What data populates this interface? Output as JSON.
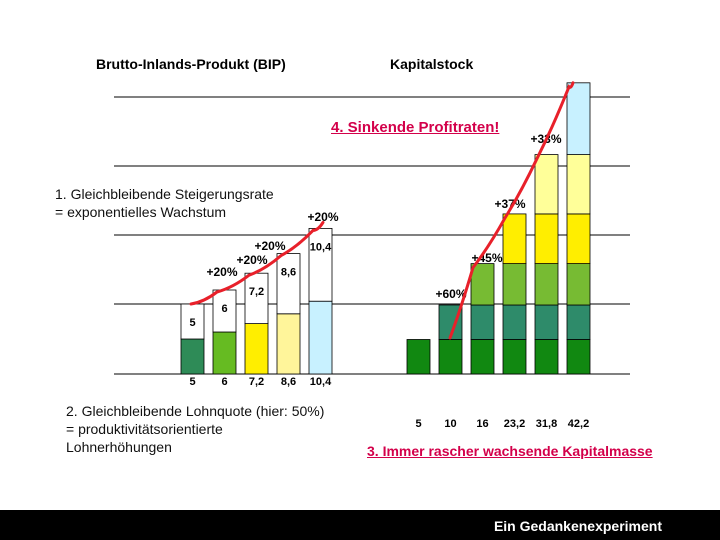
{
  "titles": {
    "left": "Brutto-Inlands-Produkt (BIP)",
    "right": "Kapitalstock"
  },
  "notes": {
    "note1_line1": "1. Gleichbleibende Steigerungsrate",
    "note1_line2": "= exponentielles Wachstum",
    "note2_line1": "2. Gleichbleibende Lohnquote (hier: 50%)",
    "note2_line2": "= produktivitätsorientierte",
    "note2_line3": "Lohnerhöhungen",
    "note3": "3. Immer rascher wachsende Kapitalmasse",
    "note4": "4. Sinkende Profitraten!"
  },
  "footer": {
    "text": "Ein Gedankenexperiment"
  },
  "colors": {
    "bip_segments": [
      "#2e8b57",
      "#66bb22",
      "#ffee00",
      "#fff59a",
      "#c8f1ff"
    ],
    "kapital_segments": [
      "#118811",
      "#2e8b6a",
      "#77bb33",
      "#ffee00",
      "#ffff99",
      "#c8f1ff"
    ],
    "curve": "#e8202a",
    "grid": "#000000",
    "annotation_red": "#d3004a"
  },
  "chart_data": [
    {
      "type": "bar",
      "title": "Brutto-Inlands-Produkt (BIP)",
      "categories": [
        "5",
        "6",
        "7,2",
        "8,6",
        "10,4"
      ],
      "values": [
        5,
        6,
        7.2,
        8.6,
        10.4
      ],
      "wage_share": 0.5,
      "inside_labels": [
        "5",
        "6",
        "7,2",
        "8,6",
        "10,4"
      ],
      "growth_labels": [
        "+20%",
        "+20%",
        "+20%",
        "+20%"
      ]
    },
    {
      "type": "bar",
      "title": "Kapitalstock",
      "categories": [
        "5",
        "10",
        "16",
        "23,2",
        "31,8",
        "42,2"
      ],
      "values": [
        5,
        10,
        16,
        23.2,
        31.8,
        42.2
      ],
      "growth_labels": [
        "+60%",
        "+45%",
        "+37%",
        "+33%"
      ]
    }
  ]
}
